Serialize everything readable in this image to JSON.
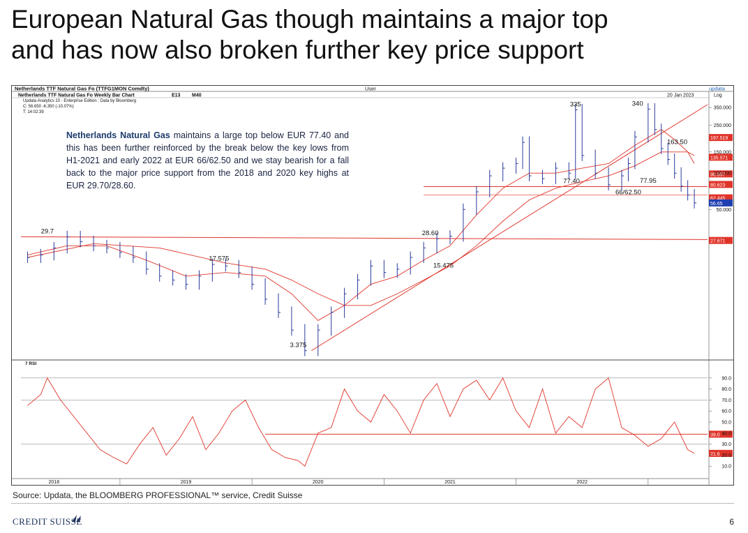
{
  "slide": {
    "title_line1": "European Natural Gas though maintains a major top",
    "title_line2": "and has now also broken further key price support",
    "source": "Source: Updata, the BLOOMBERG PROFESSIONAL™ service, Credit Suisse",
    "logo_text": "CREDIT SUISSE",
    "page_number": "6"
  },
  "commentary": {
    "bold": "Netherlands Natural Gas",
    "body": " maintains a large top below EUR 77.40 and this has been further reinforced by the break below the key lows from H1-2021 and early 2022 at EUR 66/62.50 and we stay bearish for a fall back to the major price support from the 2018 and 2020 key highs at EUR 29.70/28.60."
  },
  "chart_header": {
    "security": "Netherlands TTF Natural Gas Fo (TTFG1MON Comdty)",
    "user": "User",
    "brand": "updata",
    "chart_name": "Netherlands TTF Natural Gas Fo Weekly Bar Chart",
    "ma1": "E13",
    "ma2": "M40",
    "date": "20 Jan 2023",
    "scale": "Log",
    "edition": "Updata Analytics 10 - Enterprise Edition : Data by Bloomberg",
    "close_line": "C: 56.650 -6.350 (-10.07%)",
    "time_line": "T: 14:02:39",
    "rsi_label": "7 RSI"
  },
  "colors": {
    "bars": "#2a3a9a",
    "lines": "#e0342a",
    "label_bg": "#e0342a",
    "last_price_bg": "#1f3fb0"
  },
  "chart_data": [
    {
      "type": "bar",
      "title": "Netherlands TTF Natural Gas Fo Weekly Bar Chart",
      "scale": "log",
      "ylim": [
        2.9,
        380
      ],
      "yticks": [
        "350.000",
        "250.000",
        "150.000",
        "100.000",
        "50.000"
      ],
      "ytick_values": [
        350,
        250,
        150,
        100,
        50
      ],
      "x_labels": [
        "2018",
        "2019",
        "2020",
        "2021",
        "2022"
      ],
      "x_label_positions": [
        2018.2,
        2019.2,
        2020.2,
        2021.2,
        2022.2
      ],
      "x_range": [
        2017.95,
        2023.15
      ],
      "series": [
        {
          "name": "price",
          "x": [
            2018.0,
            2018.1,
            2018.2,
            2018.3,
            2018.4,
            2018.5,
            2018.6,
            2018.7,
            2018.8,
            2018.9,
            2019.0,
            2019.1,
            2019.2,
            2019.3,
            2019.4,
            2019.5,
            2019.6,
            2019.7,
            2019.8,
            2019.9,
            2020.0,
            2020.1,
            2020.2,
            2020.3,
            2020.4,
            2020.5,
            2020.6,
            2020.7,
            2020.8,
            2020.9,
            2021.0,
            2021.1,
            2021.2,
            2021.3,
            2021.4,
            2021.5,
            2021.6,
            2021.7,
            2021.75,
            2021.8,
            2021.9,
            2022.0,
            2022.1,
            2022.15,
            2022.2,
            2022.3,
            2022.4,
            2022.5,
            2022.55,
            2022.6,
            2022.7,
            2022.75,
            2022.8,
            2022.85,
            2022.9,
            2022.95,
            2023.0,
            2023.05
          ],
          "values": [
            20,
            21,
            24,
            29.7,
            27,
            25,
            24,
            22,
            20,
            16,
            14,
            13,
            12,
            14,
            17.5,
            17,
            15,
            12,
            9,
            7,
            5,
            3.375,
            5,
            7,
            10,
            13,
            17,
            15,
            16,
            20,
            24,
            28.6,
            30,
            50,
            70,
            95,
            110,
            120,
            180,
            95,
            90,
            110,
            100,
            335,
            140,
            100,
            80,
            95,
            120,
            200,
            340,
            230,
            160,
            130,
            100,
            78,
            66,
            56.65
          ]
        }
      ],
      "moving_averages": [
        {
          "name": "E13",
          "x": [
            2018.0,
            2018.3,
            2018.6,
            2018.9,
            2019.2,
            2019.5,
            2019.8,
            2020.0,
            2020.2,
            2020.4,
            2020.6,
            2020.8,
            2021.0,
            2021.2,
            2021.4,
            2021.6,
            2021.8,
            2022.0,
            2022.2,
            2022.4,
            2022.6,
            2022.8,
            2022.9,
            2023.0,
            2023.05
          ],
          "values": [
            21,
            25,
            25,
            19,
            14,
            15,
            14,
            10,
            6,
            8,
            12,
            14,
            19,
            25,
            45,
            75,
            100,
            100,
            110,
            120,
            170,
            230,
            190,
            150,
            120
          ]
        },
        {
          "name": "M40",
          "x": [
            2018.0,
            2018.5,
            2019.0,
            2019.5,
            2019.8,
            2020.0,
            2020.2,
            2020.4,
            2020.6,
            2020.8,
            2021.0,
            2021.2,
            2021.4,
            2021.6,
            2021.8,
            2022.0,
            2022.2,
            2022.4,
            2022.6,
            2022.8,
            2023.0,
            2023.05
          ],
          "values": [
            20,
            26,
            24,
            18,
            16,
            13,
            10,
            8,
            8,
            10,
            13,
            17,
            25,
            40,
            60,
            75,
            85,
            95,
            115,
            150,
            150,
            140
          ]
        }
      ],
      "horizontal_levels": [
        29.7,
        77.4,
        66
      ],
      "trendline": {
        "x": [
          2020.15,
          2023.15
        ],
        "values": [
          3.375,
          370
        ]
      },
      "annotations": [
        {
          "text": "29.7",
          "x": 2018.15,
          "y": 29.7
        },
        {
          "text": "17.575",
          "x": 2019.45,
          "y": 17.575
        },
        {
          "text": "3.375",
          "x": 2020.05,
          "y": 3.375
        },
        {
          "text": "28.60",
          "x": 2021.05,
          "y": 28.6
        },
        {
          "text": "15.475",
          "x": 2021.15,
          "y": 15.475
        },
        {
          "text": "335",
          "x": 2022.15,
          "y": 335
        },
        {
          "text": "340",
          "x": 2022.62,
          "y": 340
        },
        {
          "text": "77.40",
          "x": 2022.12,
          "y": 77.4
        },
        {
          "text": "77.95",
          "x": 2022.7,
          "y": 77.95
        },
        {
          "text": "163.50",
          "x": 2022.92,
          "y": 163.5
        },
        {
          "text": "66/62.50",
          "x": 2022.55,
          "y": 62.5
        }
      ],
      "right_labels": [
        {
          "text": "197.519",
          "value": 197.519,
          "color": "#e0342a"
        },
        {
          "text": "135.571",
          "value": 135.571,
          "color": "#e0342a"
        },
        {
          "text": "98.557",
          "value": 98.557,
          "color": "#e0342a"
        },
        {
          "text": "80.623",
          "value": 80.623,
          "color": "#e0342a"
        },
        {
          "text": "62.445",
          "value": 62.445,
          "color": "#e0342a"
        },
        {
          "text": "56.65",
          "value": 56.65,
          "color": "#1f3fb0"
        },
        {
          "text": "27.671",
          "value": 27.671,
          "color": "#e0342a"
        }
      ]
    },
    {
      "type": "line",
      "title": "7 RSI",
      "ylim": [
        0,
        100
      ],
      "yticks": [
        "90.0",
        "80.0",
        "70.0",
        "60.0",
        "50.0",
        "40.0",
        "30.0",
        "20.0",
        "10.0"
      ],
      "ytick_values": [
        90,
        80,
        70,
        60,
        50,
        40,
        30,
        20,
        10
      ],
      "guide_lines": [
        90,
        70,
        30
      ],
      "horizontal_levels": [
        39
      ],
      "series": [
        {
          "name": "7 RSI",
          "x": [
            2018.0,
            2018.1,
            2018.15,
            2018.25,
            2018.35,
            2018.45,
            2018.55,
            2018.65,
            2018.75,
            2018.85,
            2018.95,
            2019.05,
            2019.15,
            2019.25,
            2019.35,
            2019.45,
            2019.55,
            2019.65,
            2019.75,
            2019.85,
            2019.95,
            2020.05,
            2020.1,
            2020.2,
            2020.3,
            2020.4,
            2020.5,
            2020.6,
            2020.7,
            2020.8,
            2020.9,
            2021.0,
            2021.1,
            2021.2,
            2021.3,
            2021.4,
            2021.5,
            2021.6,
            2021.7,
            2021.8,
            2021.9,
            2022.0,
            2022.1,
            2022.2,
            2022.3,
            2022.4,
            2022.5,
            2022.6,
            2022.7,
            2022.8,
            2022.9,
            2023.0,
            2023.05
          ],
          "values": [
            65,
            75,
            90,
            70,
            55,
            40,
            25,
            18,
            12,
            30,
            45,
            20,
            35,
            55,
            25,
            40,
            60,
            70,
            45,
            25,
            18,
            15,
            10,
            40,
            45,
            80,
            60,
            50,
            75,
            60,
            40,
            70,
            85,
            55,
            80,
            88,
            70,
            90,
            60,
            45,
            80,
            40,
            55,
            45,
            80,
            90,
            45,
            38,
            28,
            35,
            50,
            25,
            21.6
          ]
        }
      ],
      "right_labels": [
        {
          "text": "39.0",
          "value": 39,
          "color": "#e0342a"
        },
        {
          "text": "21.6",
          "value": 21.6,
          "color": "#e0342a"
        }
      ]
    }
  ]
}
